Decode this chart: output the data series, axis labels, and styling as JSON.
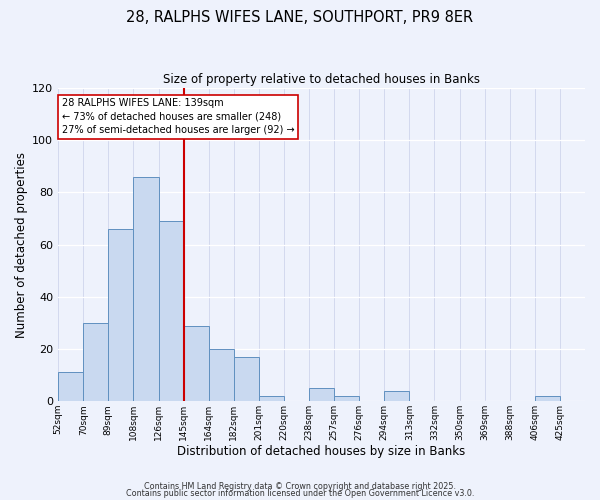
{
  "title1": "28, RALPHS WIFES LANE, SOUTHPORT, PR9 8ER",
  "title2": "Size of property relative to detached houses in Banks",
  "xlabel": "Distribution of detached houses by size in Banks",
  "ylabel": "Number of detached properties",
  "bar_color": "#c9d9f0",
  "bar_edge_color": "#6090c0",
  "background_color": "#eef2fc",
  "grid_color": "#c8cfe8",
  "bin_labels": [
    "52sqm",
    "70sqm",
    "89sqm",
    "108sqm",
    "126sqm",
    "145sqm",
    "164sqm",
    "182sqm",
    "201sqm",
    "220sqm",
    "238sqm",
    "257sqm",
    "276sqm",
    "294sqm",
    "313sqm",
    "332sqm",
    "350sqm",
    "369sqm",
    "388sqm",
    "406sqm",
    "425sqm"
  ],
  "bar_heights": [
    11,
    30,
    66,
    86,
    69,
    29,
    20,
    17,
    2,
    0,
    5,
    2,
    0,
    4,
    0,
    0,
    0,
    0,
    0,
    2,
    0
  ],
  "vline_x": 5,
  "vline_color": "#cc0000",
  "annotation_text": "28 RALPHS WIFES LANE: 139sqm\n← 73% of detached houses are smaller (248)\n27% of semi-detached houses are larger (92) →",
  "ylim": [
    0,
    120
  ],
  "yticks": [
    0,
    20,
    40,
    60,
    80,
    100,
    120
  ],
  "footer1": "Contains HM Land Registry data © Crown copyright and database right 2025.",
  "footer2": "Contains public sector information licensed under the Open Government Licence v3.0."
}
